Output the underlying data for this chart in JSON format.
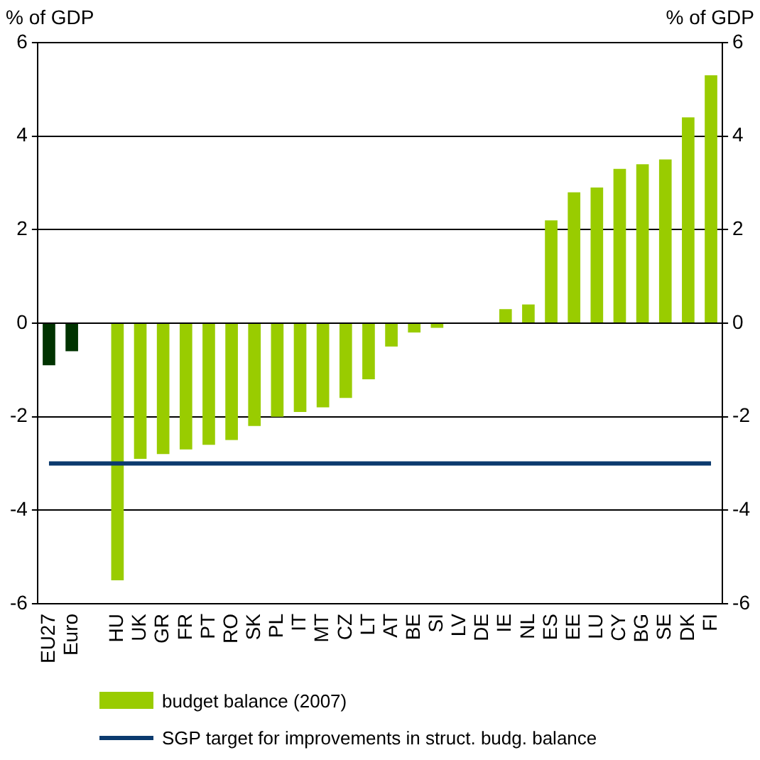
{
  "chart_data": {
    "type": "bar",
    "ylabel": "% of GDP",
    "y2label": "% of GDP",
    "categories": [
      "EU27",
      "Euro",
      null,
      "HU",
      "UK",
      "GR",
      "FR",
      "PT",
      "RO",
      "SK",
      "PL",
      "IT",
      "MT",
      "CZ",
      "LT",
      "AT",
      "BE",
      "SI",
      "LV",
      "DE",
      "IE",
      "NL",
      "ES",
      "EE",
      "LU",
      "CY",
      "BG",
      "SE",
      "DK",
      "FI"
    ],
    "series": [
      {
        "name": "budget balance (2007)",
        "color": "#99cc00",
        "colors": [
          "#003300",
          "#003300",
          null,
          "#99cc00",
          "#99cc00",
          "#99cc00",
          "#99cc00",
          "#99cc00",
          "#99cc00",
          "#99cc00",
          "#99cc00",
          "#99cc00",
          "#99cc00",
          "#99cc00",
          "#99cc00",
          "#99cc00",
          "#99cc00",
          "#99cc00",
          "#99cc00",
          "#99cc00",
          "#99cc00",
          "#99cc00",
          "#99cc00",
          "#99cc00",
          "#99cc00",
          "#99cc00",
          "#99cc00",
          "#99cc00",
          "#99cc00",
          "#99cc00"
        ],
        "values": [
          -0.9,
          -0.6,
          null,
          -5.5,
          -2.9,
          -2.8,
          -2.7,
          -2.6,
          -2.5,
          -2.2,
          -2.0,
          -1.9,
          -1.8,
          -1.6,
          -1.2,
          -0.5,
          -0.2,
          -0.1,
          0,
          0,
          0.3,
          0.4,
          2.2,
          2.8,
          2.9,
          3.3,
          3.4,
          3.5,
          4.4,
          5.3
        ]
      },
      {
        "name": "SGP target for improvements in struct. budg. balance",
        "type": "line",
        "color": "#0b3a6e",
        "values": [
          -3,
          -3,
          -3,
          -3,
          -3,
          -3,
          -3,
          -3,
          -3,
          -3,
          -3,
          -3,
          -3,
          -3,
          -3,
          -3,
          -3,
          -3,
          -3,
          -3,
          -3,
          -3,
          -3,
          -3,
          -3,
          -3,
          -3,
          -3,
          -3,
          -3
        ]
      }
    ],
    "ylim": [
      -6,
      6
    ],
    "yticks": [
      -6,
      -4,
      -2,
      0,
      2,
      4,
      6
    ],
    "y2lim": [
      -6,
      6
    ],
    "y2ticks": [
      -6,
      -4,
      -2,
      0,
      2,
      4,
      6
    ],
    "grid": "y",
    "legend": "bottom",
    "marker": "none"
  }
}
